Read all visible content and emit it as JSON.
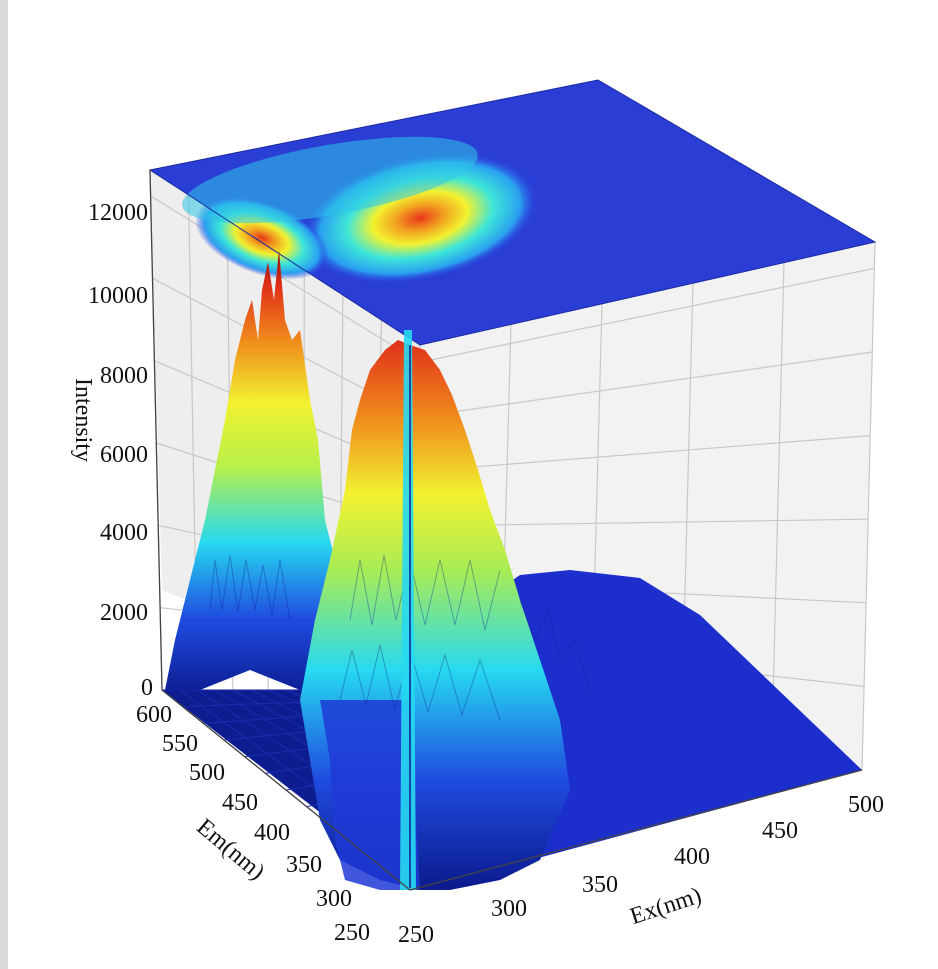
{
  "chart_data": {
    "type": "surface3d",
    "title": "",
    "xlabel": "Ex(nm)",
    "ylabel": "Em(nm)",
    "zlabel": "Intensity",
    "xlim": [
      250,
      500
    ],
    "ylim": [
      250,
      600
    ],
    "zlim": [
      0,
      12500
    ],
    "x_ticks": [
      "250",
      "300",
      "350",
      "400",
      "450",
      "500"
    ],
    "y_ticks": [
      "250",
      "300",
      "350",
      "400",
      "450",
      "500",
      "550",
      "600"
    ],
    "z_ticks": [
      "0",
      "2000",
      "4000",
      "6000",
      "8000",
      "10000",
      "12000"
    ],
    "grid": true,
    "colormap": "jet",
    "top_projection": "filled contour",
    "peaks": [
      {
        "ex": 255,
        "em": 535,
        "intensity": 11000
      },
      {
        "ex": 275,
        "em": 365,
        "intensity": 8800
      },
      {
        "ex": 250,
        "em": 265,
        "intensity": 10400
      }
    ],
    "colors": {
      "low": "#1f2bd4",
      "floor": "#0b1a8c",
      "cyan": "#27e0e8",
      "yellow": "#f2f230",
      "red": "#e8361a",
      "peak": "#8c0f0a"
    }
  }
}
